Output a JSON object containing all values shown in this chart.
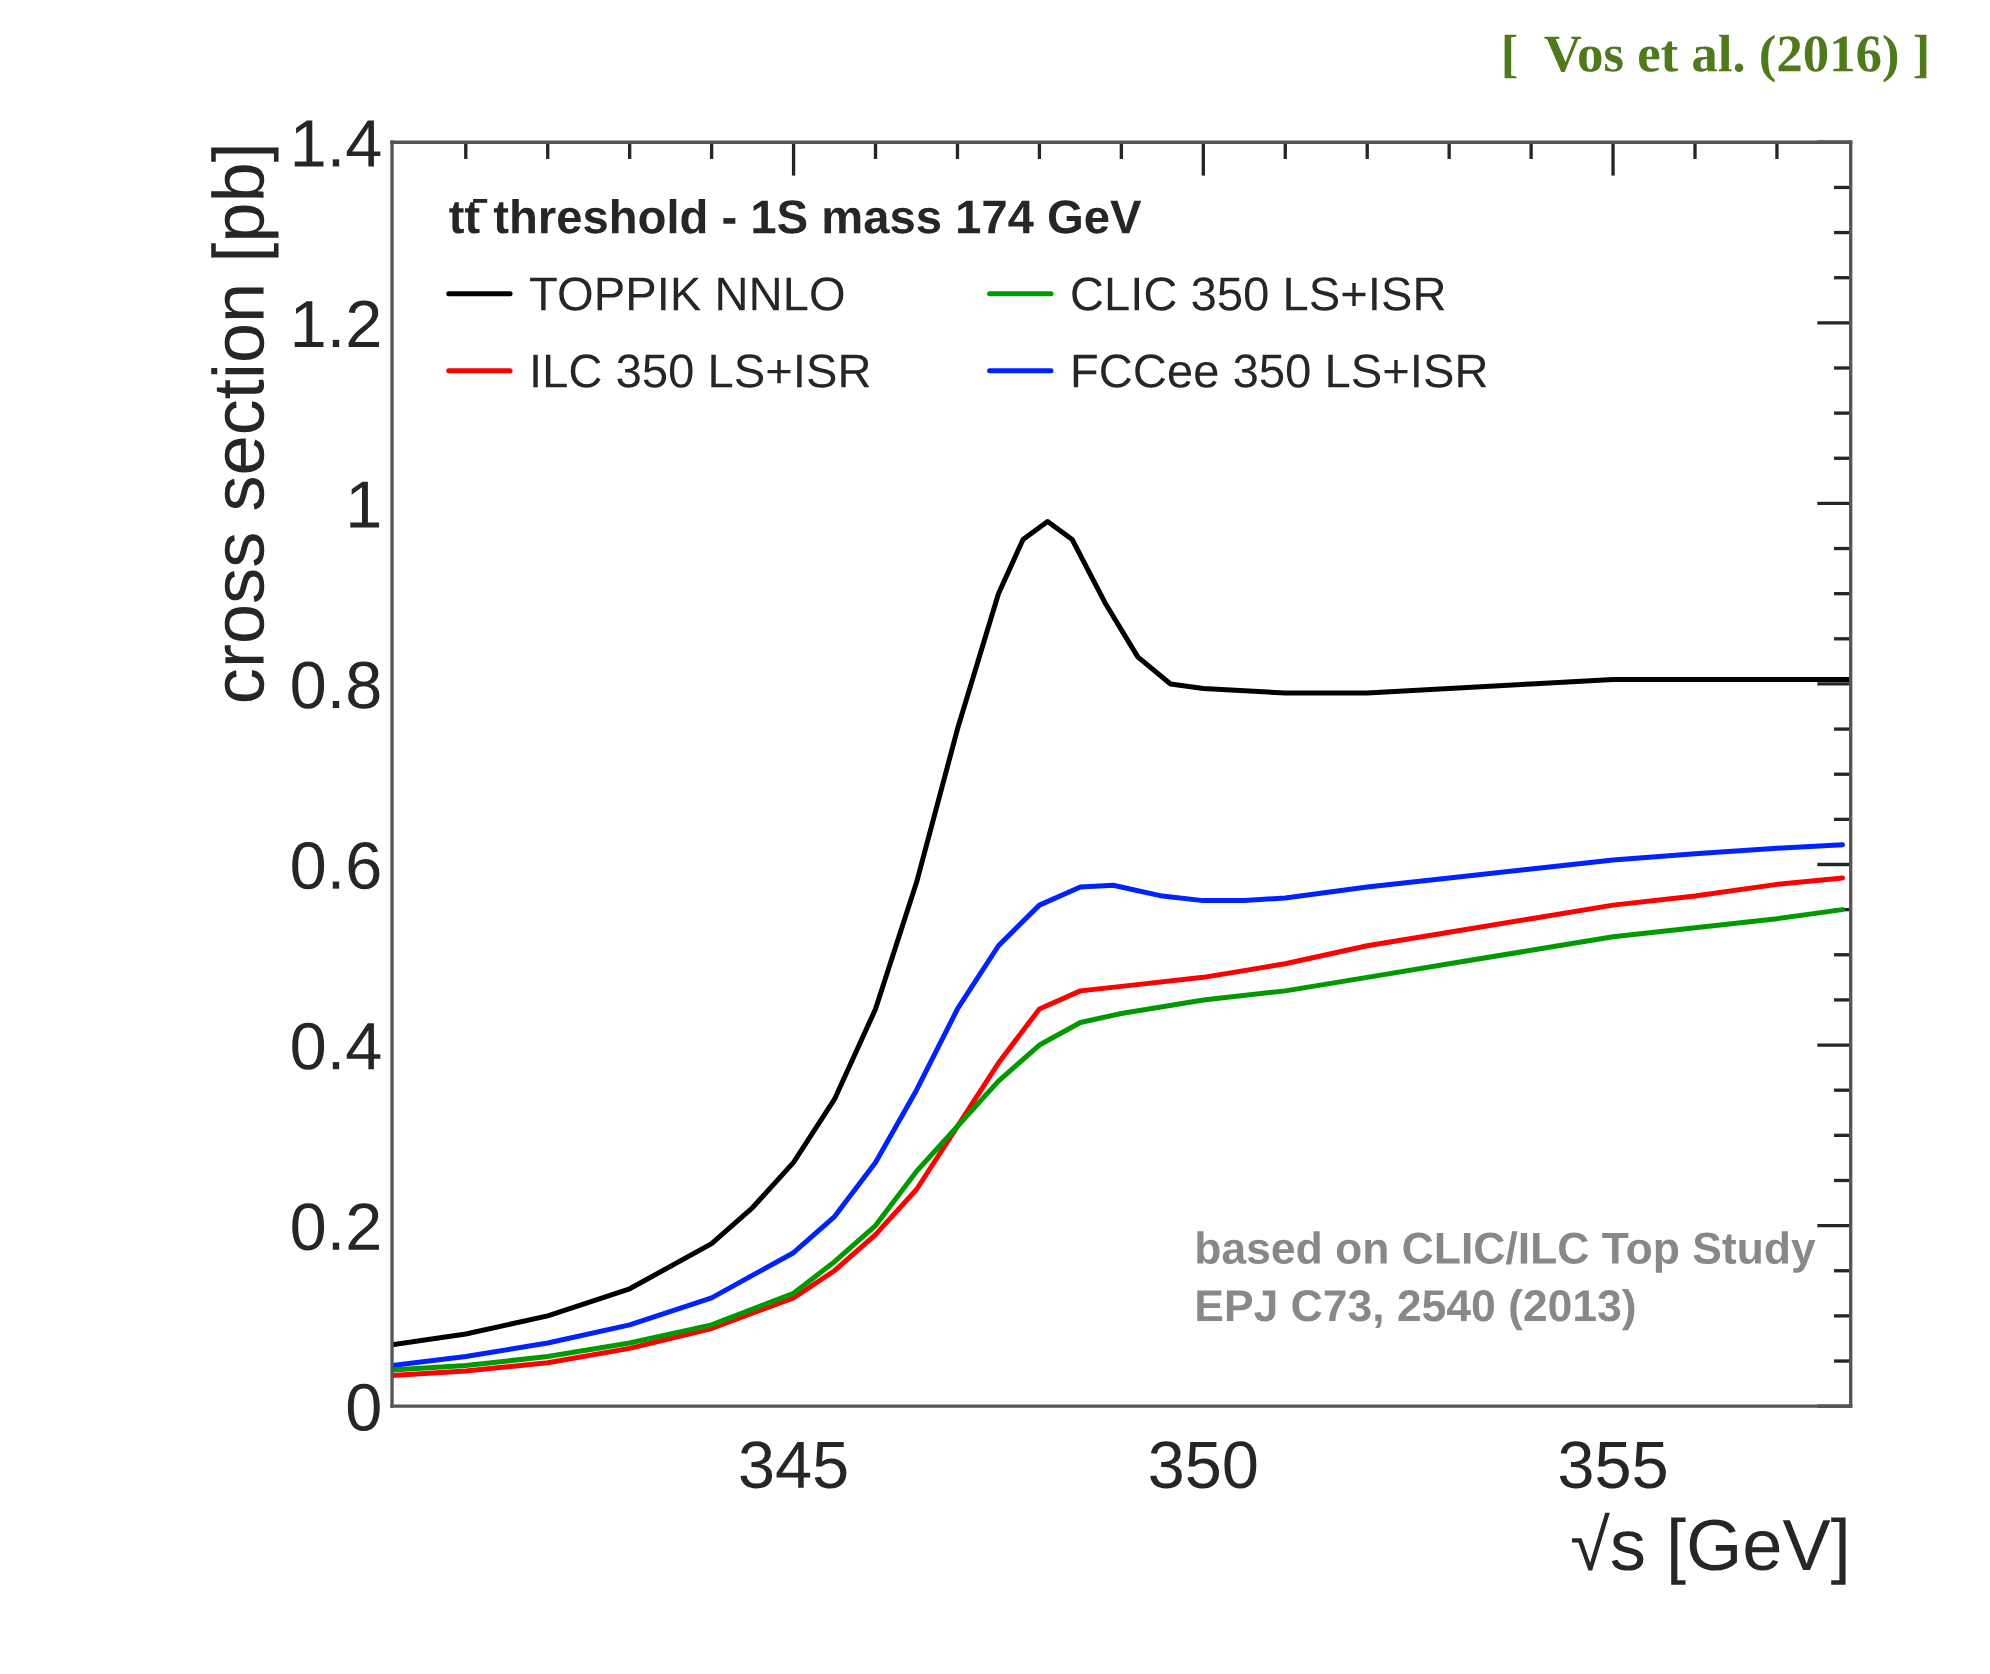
{
  "chart_data": {
    "type": "line",
    "xlabel": "√s [GeV]",
    "ylabel": "cross section [pb]",
    "legend_title": "tt̄ threshold - 1S mass 174 GeV",
    "xlim": [
      340.1,
      357.9
    ],
    "xticks": [
      345,
      350,
      355
    ],
    "ylim": [
      0,
      1.4
    ],
    "yticks": [
      0,
      0.2,
      0.4,
      0.6,
      0.8,
      1,
      1.2,
      1.4
    ],
    "grid": false,
    "legend": "top left",
    "marker": "none",
    "line_style": "solid",
    "annotations": [
      "[  Vos et al. (2016) ]",
      "based on CLIC/ILC Top Study\nEPJ C73, 2540 (2013)"
    ],
    "series": [
      {
        "name": "TOPPIK NNLO",
        "color": "#000000",
        "x": [
          340.1,
          341,
          342,
          343,
          344,
          344.5,
          345,
          345.5,
          346,
          346.5,
          347,
          347.5,
          347.8,
          348.1,
          348.4,
          348.8,
          349.2,
          349.6,
          350,
          351,
          352,
          353,
          354,
          355,
          356,
          357.9
        ],
        "values": [
          0.068,
          0.08,
          0.1,
          0.13,
          0.18,
          0.22,
          0.27,
          0.34,
          0.44,
          0.58,
          0.75,
          0.9,
          0.96,
          0.98,
          0.96,
          0.89,
          0.83,
          0.8,
          0.795,
          0.79,
          0.79,
          0.795,
          0.8,
          0.805,
          0.805,
          0.805
        ]
      },
      {
        "name": "ILC 350 LS+ISR",
        "color": "#ff0000",
        "x": [
          340.1,
          341,
          342,
          343,
          344,
          345,
          345.5,
          346,
          346.5,
          347,
          347.5,
          348,
          348.5,
          349,
          350,
          351,
          352,
          353,
          354,
          355,
          356,
          357,
          357.8
        ],
        "values": [
          0.034,
          0.039,
          0.048,
          0.064,
          0.086,
          0.12,
          0.15,
          0.19,
          0.24,
          0.31,
          0.38,
          0.44,
          0.46,
          0.465,
          0.475,
          0.49,
          0.51,
          0.525,
          0.54,
          0.555,
          0.565,
          0.578,
          0.585
        ]
      },
      {
        "name": "CLIC 350 LS+ISR",
        "color": "#009900",
        "x": [
          340.1,
          341,
          342,
          343,
          344,
          345,
          345.5,
          346,
          346.5,
          347,
          347.5,
          348,
          348.5,
          349,
          350,
          351,
          352,
          353,
          354,
          355,
          356,
          357,
          357.8
        ],
        "values": [
          0.04,
          0.045,
          0.055,
          0.07,
          0.09,
          0.125,
          0.16,
          0.2,
          0.26,
          0.31,
          0.36,
          0.4,
          0.425,
          0.435,
          0.45,
          0.46,
          0.475,
          0.49,
          0.505,
          0.52,
          0.53,
          0.54,
          0.55
        ]
      },
      {
        "name": "FCCee 350 LS+ISR",
        "color": "#0022ff",
        "x": [
          340.1,
          341,
          342,
          343,
          344,
          345,
          345.5,
          346,
          346.5,
          347,
          347.5,
          348,
          348.5,
          348.9,
          349.5,
          350,
          350.5,
          351,
          352,
          353,
          354,
          355,
          356,
          357,
          357.8
        ],
        "values": [
          0.045,
          0.055,
          0.07,
          0.09,
          0.12,
          0.17,
          0.21,
          0.27,
          0.35,
          0.44,
          0.51,
          0.555,
          0.575,
          0.577,
          0.565,
          0.56,
          0.56,
          0.563,
          0.575,
          0.585,
          0.595,
          0.605,
          0.612,
          0.618,
          0.622
        ]
      }
    ]
  }
}
